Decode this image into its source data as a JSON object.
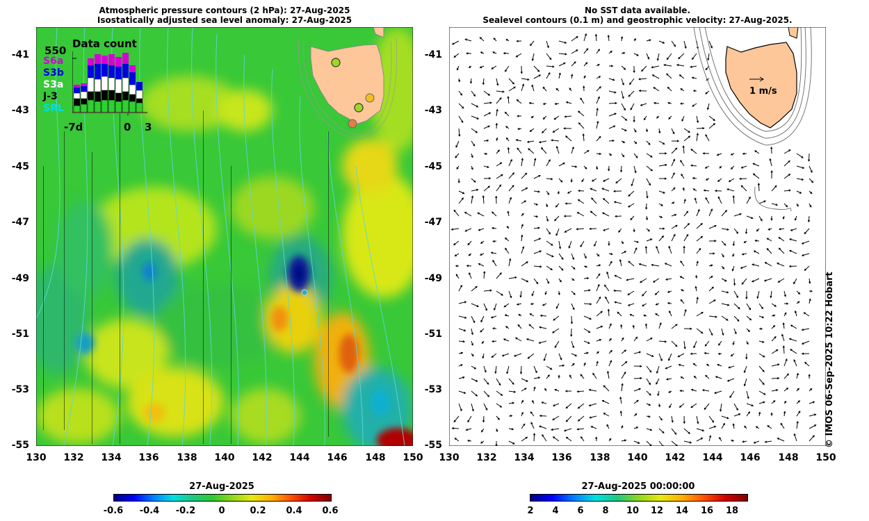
{
  "left_panel": {
    "title_line1": "Atmospheric pressure contours (2 hPa): 27-Aug-2025",
    "title_line2": "Isostatically adjusted sea level anomaly: 27-Aug-2025",
    "inset": {
      "title": "Data count",
      "max_label": "550",
      "legend": [
        "S6a",
        "S3b",
        "S3a",
        "J-3",
        "SRL"
      ],
      "legend_colors": [
        "#d400d4",
        "#0000e0",
        "#ffffff",
        "#000000",
        "#00e0e0"
      ],
      "x_labels": [
        "-7d",
        "0",
        "3"
      ]
    },
    "colorbar": {
      "title": "27-Aug-2025",
      "ticks": [
        "-0.6",
        "-0.4",
        "-0.2",
        "0",
        "0.2",
        "0.4",
        "0.6"
      ]
    }
  },
  "right_panel": {
    "title_line1": "No SST data available.",
    "title_line2": "Sealevel contours (0.1 m) and geostrophic velocity: 27-Aug-2025.",
    "scale_label": "1 m/s",
    "colorbar": {
      "title": "27-Aug-2025 00:00:00",
      "ticks": [
        "2",
        "4",
        "6",
        "8",
        "10",
        "12",
        "14",
        "16",
        "18"
      ]
    }
  },
  "axes": {
    "lat_ticks": [
      "-41",
      "-43",
      "-45",
      "-47",
      "-49",
      "-51",
      "-53",
      "-55"
    ],
    "lon_ticks": [
      "130",
      "132",
      "134",
      "136",
      "138",
      "140",
      "142",
      "144",
      "146",
      "148",
      "150"
    ]
  },
  "credit": "© IMOS 06-Sep-2025 10:22 Hobart",
  "colors": {
    "land": "#fdc79a",
    "contour": "#5fd6d6",
    "sla_low": "#0a1f9a",
    "sla_high": "#b00000",
    "sla_mid": "#30c830"
  }
}
